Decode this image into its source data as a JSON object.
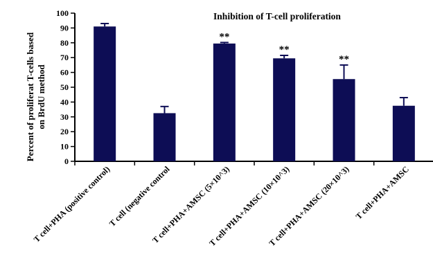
{
  "chart_data": {
    "type": "bar",
    "title": "Inhibition of T-cell proliferation",
    "ylabel_lines": [
      "Percent of proliferat T-cells based",
      "on BrdU method"
    ],
    "xlabel": "",
    "ylim": [
      0,
      100
    ],
    "yticks": [
      0,
      10,
      20,
      30,
      40,
      50,
      60,
      70,
      80,
      90,
      100
    ],
    "categories": [
      "T cell+PHA (positive control)",
      "T cell (negative control",
      "T cell+PHA+AMSC (5×10^3)",
      "T cell+PHA+AMSC (10×10^3)",
      "T cell+PHA+AMSC (20×10^3)",
      "T cell+PHA+AMSC"
    ],
    "values": [
      91,
      32.5,
      79.5,
      69.5,
      55.5,
      37.5
    ],
    "error_plus": [
      2,
      4.5,
      0.7,
      2,
      9.5,
      5.5
    ],
    "annotations": [
      "",
      "",
      "**",
      "**",
      "**",
      ""
    ],
    "bar_color": "#0d0d55",
    "grid": false,
    "legend": "none"
  }
}
